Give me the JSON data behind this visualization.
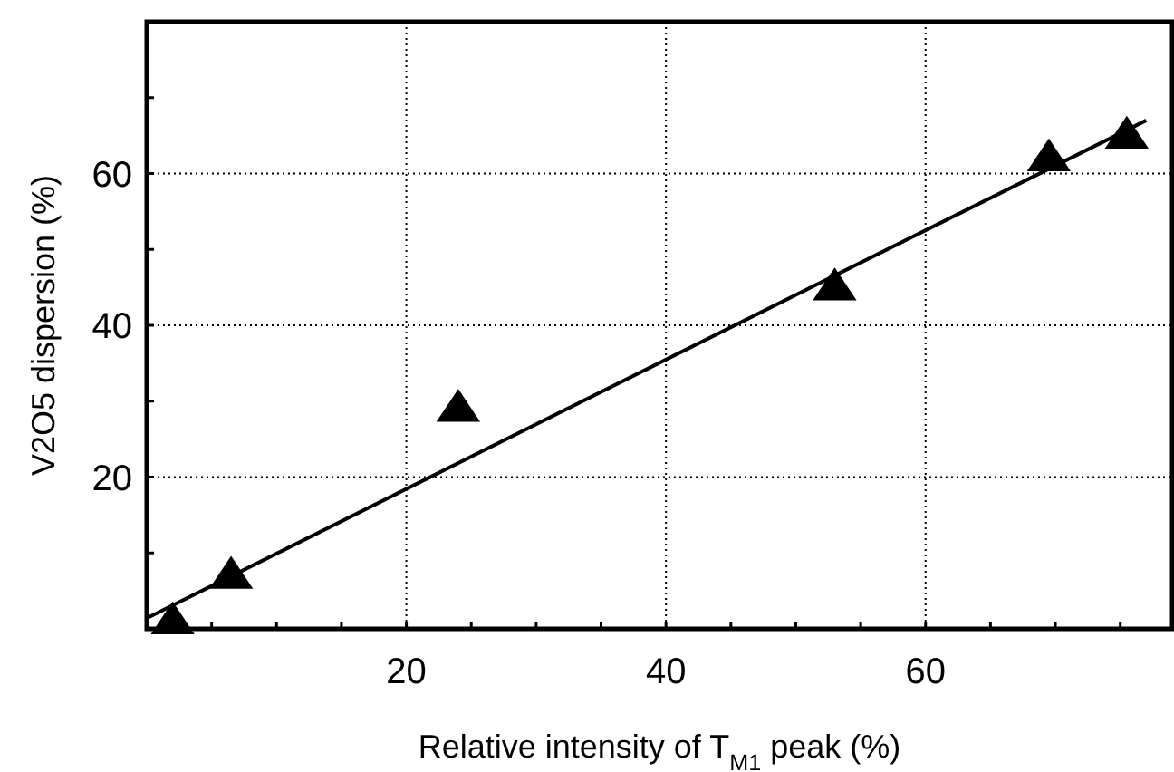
{
  "chart_data": {
    "type": "scatter",
    "xlabel": "Relative intensity of T$_{M1}$ peak (%)",
    "ylabel": "V2O5 dispersion (%)",
    "xlim": [
      0,
      79
    ],
    "ylim": [
      0,
      80
    ],
    "xticks": [
      {
        "value": 5,
        "label": null
      },
      {
        "value": 10,
        "label": null
      },
      {
        "value": 15,
        "label": null
      },
      20,
      {
        "value": 25,
        "label": null
      },
      {
        "value": 30,
        "label": null
      },
      {
        "value": 35,
        "label": null
      },
      40,
      {
        "value": 45,
        "label": null
      },
      {
        "value": 50,
        "label": null
      },
      {
        "value": 55,
        "label": null
      },
      60,
      {
        "value": 65,
        "label": null
      },
      {
        "value": 70,
        "label": null
      },
      {
        "value": 75,
        "label": null
      }
    ],
    "yticks": [
      {
        "value": 10,
        "label": null
      },
      20,
      {
        "value": 30,
        "label": null
      },
      40,
      {
        "value": 50,
        "label": null
      },
      60,
      {
        "value": 70,
        "label": null
      }
    ],
    "grid": true,
    "marker": "triangle",
    "series": [
      {
        "color": "#000000",
        "x": [
          2,
          6.5,
          24,
          53,
          69.5,
          75.5
        ],
        "values": [
          1,
          7,
          29,
          45,
          62,
          65
        ]
      },
      {
        "type": "line",
        "color": "#000000",
        "line_style": "solid",
        "marker": "none",
        "x": [
          0,
          77
        ],
        "values": [
          1.4,
          67
        ]
      }
    ]
  }
}
